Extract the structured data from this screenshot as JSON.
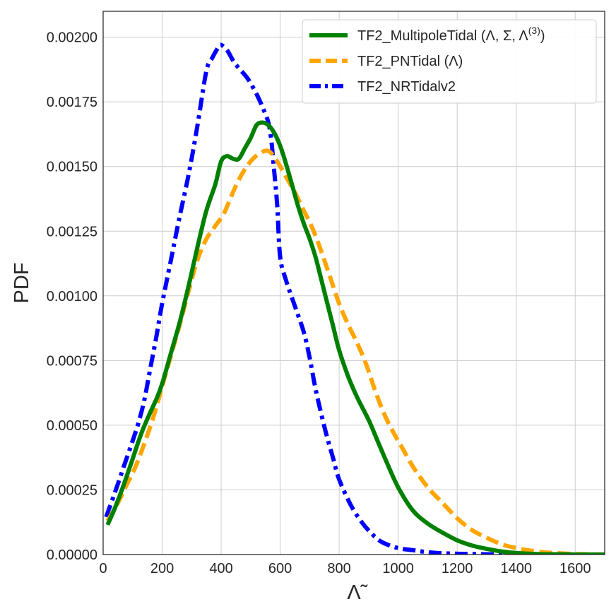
{
  "chart_data": {
    "type": "line",
    "xlabel": "Λ̃",
    "ylabel": "PDF",
    "xlim": [
      0,
      1700
    ],
    "ylim": [
      0,
      0.0021
    ],
    "x_ticks": [
      "0",
      "200",
      "400",
      "600",
      "800",
      "1000",
      "1200",
      "1400",
      "1600"
    ],
    "x_tick_values": [
      0,
      200,
      400,
      600,
      800,
      1000,
      1200,
      1400,
      1600
    ],
    "y_ticks": [
      "0.00000",
      "0.00025",
      "0.00050",
      "0.00075",
      "0.00100",
      "0.00125",
      "0.00150",
      "0.00175",
      "0.00200"
    ],
    "y_tick_values": [
      0,
      0.00025,
      0.0005,
      0.00075,
      0.001,
      0.00125,
      0.0015,
      0.00175,
      0.002
    ],
    "grid": true,
    "legend_position": "upper-right",
    "series": [
      {
        "name": "TF2_MultipoleTidal (Λ, Σ, Λ",
        "name_sup": "(3)",
        "name_suffix": ")",
        "color": "#008000",
        "dash": "solid",
        "x": [
          15,
          40,
          70,
          100,
          130,
          160,
          180,
          200,
          230,
          260,
          290,
          320,
          350,
          380,
          400,
          420,
          440,
          460,
          480,
          500,
          520,
          540,
          560,
          580,
          600,
          620,
          640,
          660,
          680,
          700,
          720,
          740,
          760,
          780,
          800,
          830,
          860,
          900,
          930,
          960,
          1000,
          1050,
          1100,
          1150,
          1200,
          1250,
          1300,
          1350,
          1400,
          1450,
          1500,
          1550,
          1600,
          1650,
          1700
        ],
        "values": [
          0.000115,
          0.00018,
          0.00027,
          0.00037,
          0.00047,
          0.00055,
          0.0006,
          0.00066,
          0.00078,
          0.0009,
          0.00104,
          0.00119,
          0.00133,
          0.00143,
          0.00152,
          0.00154,
          0.00153,
          0.00153,
          0.00157,
          0.00161,
          0.00166,
          0.00167,
          0.00166,
          0.00163,
          0.00158,
          0.00151,
          0.00143,
          0.00135,
          0.00128,
          0.00122,
          0.00115,
          0.00106,
          0.00097,
          0.00088,
          0.00079,
          0.00069,
          0.00061,
          0.00052,
          0.00044,
          0.00036,
          0.00026,
          0.00017,
          0.00012,
          8.5e-05,
          5.5e-05,
          3.5e-05,
          2.2e-05,
          1.2e-05,
          6e-06,
          3e-06,
          1e-06,
          1e-06,
          0,
          0,
          0
        ]
      },
      {
        "name": "TF2_PNTidal (Λ)",
        "color": "#ffa500",
        "dash": "dashed",
        "x": [
          15,
          50,
          80,
          110,
          140,
          170,
          200,
          230,
          260,
          290,
          320,
          350,
          380,
          410,
          440,
          470,
          500,
          530,
          560,
          590,
          620,
          650,
          680,
          710,
          740,
          770,
          800,
          830,
          860,
          890,
          920,
          950,
          980,
          1010,
          1050,
          1100,
          1150,
          1200,
          1250,
          1300,
          1350,
          1400,
          1450,
          1500,
          1550,
          1600,
          1650,
          1700
        ],
        "values": [
          0.00013,
          0.0002,
          0.00027,
          0.00034,
          0.00043,
          0.00053,
          0.00065,
          0.00077,
          0.00089,
          0.00102,
          0.00114,
          0.00122,
          0.00127,
          0.00132,
          0.0014,
          0.00147,
          0.00152,
          0.00155,
          0.00156,
          0.00152,
          0.00146,
          0.0014,
          0.00133,
          0.00126,
          0.00117,
          0.00107,
          0.00097,
          0.00089,
          0.00082,
          0.00074,
          0.00064,
          0.00055,
          0.00048,
          0.00042,
          0.00034,
          0.00026,
          0.0002,
          0.00014,
          9.5e-05,
          6.5e-05,
          4e-05,
          2.5e-05,
          1.5e-05,
          8e-06,
          5e-06,
          2e-06,
          1e-06,
          0
        ]
      },
      {
        "name": "TF2_NRTidalv2",
        "color": "#0000ff",
        "dash": "dashdot",
        "x": [
          10,
          40,
          70,
          100,
          120,
          140,
          160,
          180,
          200,
          230,
          260,
          290,
          320,
          350,
          370,
          390,
          400,
          420,
          440,
          460,
          490,
          520,
          540,
          560,
          570,
          580,
          590,
          600,
          620,
          650,
          680,
          700,
          720,
          740,
          760,
          780,
          800,
          840,
          880,
          920,
          950,
          1000,
          1050,
          1100,
          1150,
          1200,
          1250,
          1300,
          1350,
          1400,
          1450,
          1500
        ],
        "values": [
          0.000145,
          0.00024,
          0.00034,
          0.00044,
          0.00051,
          0.0006,
          0.00072,
          0.00084,
          0.00097,
          0.00114,
          0.00131,
          0.00147,
          0.00166,
          0.00187,
          0.00192,
          0.00196,
          0.00197,
          0.00195,
          0.00191,
          0.00188,
          0.00184,
          0.00178,
          0.00173,
          0.00167,
          0.0016,
          0.00148,
          0.00135,
          0.00115,
          0.00106,
          0.00096,
          0.00086,
          0.00076,
          0.00064,
          0.00054,
          0.00045,
          0.00037,
          0.00029,
          0.00019,
          0.00012,
          7e-05,
          4.5e-05,
          2.5e-05,
          1.7e-05,
          9e-06,
          5e-06,
          3e-06,
          2e-06,
          1e-06,
          0,
          0,
          0,
          0
        ]
      }
    ]
  }
}
